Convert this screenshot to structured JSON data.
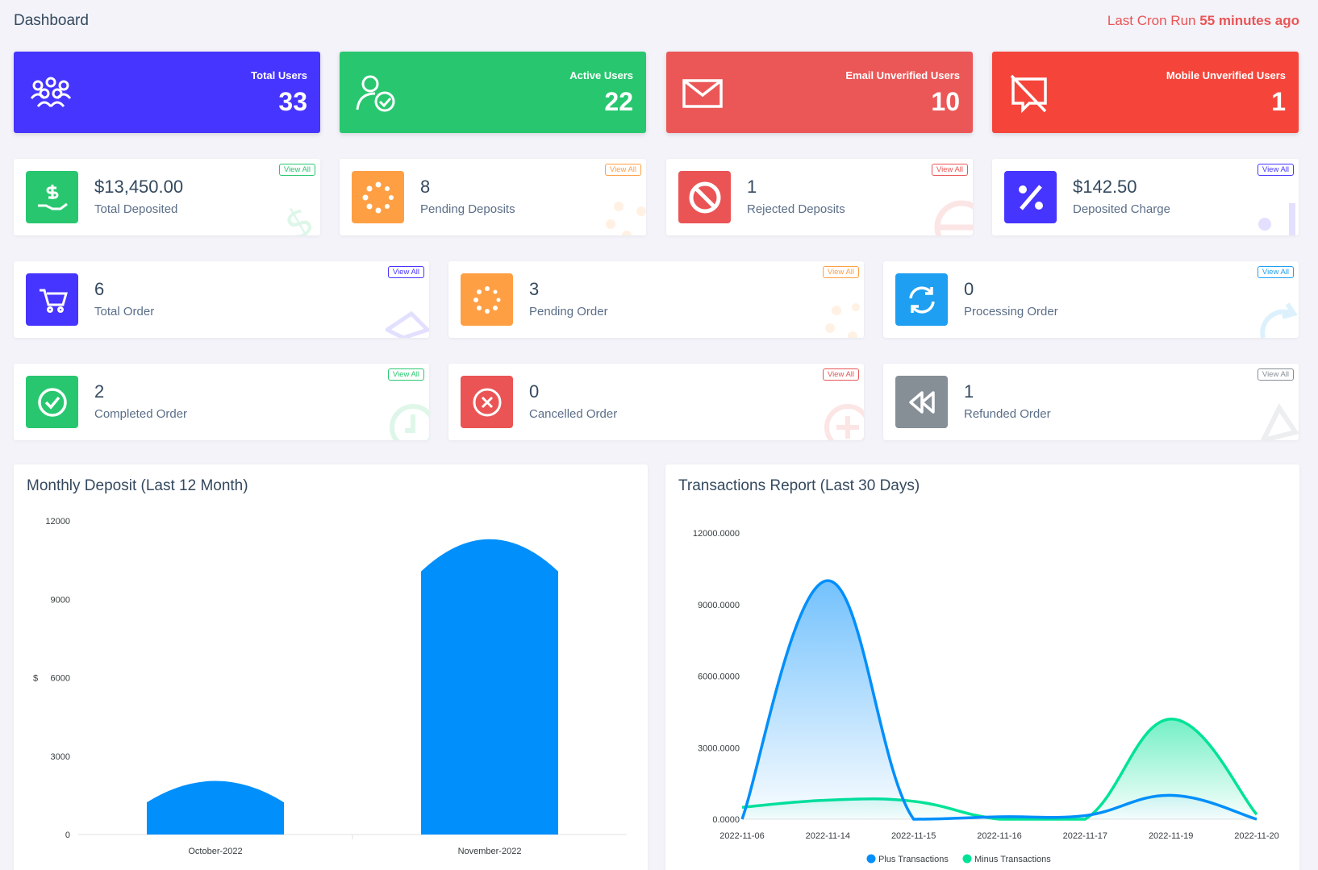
{
  "header": {
    "title": "Dashboard",
    "cron_label": "Last Cron Run",
    "cron_value": "55 minutes ago"
  },
  "stats": [
    {
      "label": "Total Users",
      "value": "33",
      "color": "#4634ff",
      "icon": "users-icon"
    },
    {
      "label": "Active Users",
      "value": "22",
      "color": "#28c76f",
      "icon": "user-check-icon"
    },
    {
      "label": "Email Unverified Users",
      "value": "10",
      "color": "#eb5757",
      "icon": "envelope-icon"
    },
    {
      "label": "Mobile Unverified Users",
      "value": "1",
      "color": "#f5453a",
      "icon": "comment-slash-icon"
    }
  ],
  "deposits": [
    {
      "value": "$13,450.00",
      "label": "Total Deposited",
      "link": "View All",
      "color": "#28c76f",
      "icon": "hand-dollar-icon"
    },
    {
      "value": "8",
      "label": "Pending Deposits",
      "link": "View All",
      "color": "#ff9f43",
      "icon": "spinner-icon"
    },
    {
      "value": "1",
      "label": "Rejected Deposits",
      "link": "View All",
      "color": "#ea5455",
      "icon": "ban-icon"
    },
    {
      "value": "$142.50",
      "label": "Deposited Charge",
      "link": "View All",
      "color": "#4634ff",
      "icon": "percent-icon"
    }
  ],
  "orders_row1": [
    {
      "value": "6",
      "label": "Total Order",
      "link": "View All",
      "color": "#4634ff",
      "icon": "cart-icon"
    },
    {
      "value": "3",
      "label": "Pending Order",
      "link": "View All",
      "color": "#ff9f43",
      "icon": "spinner-icon"
    },
    {
      "value": "0",
      "label": "Processing Order",
      "link": "View All",
      "color": "#1e9ff2",
      "icon": "sync-icon"
    }
  ],
  "orders_row2": [
    {
      "value": "2",
      "label": "Completed Order",
      "link": "View All",
      "color": "#28c76f",
      "icon": "check-circle-icon"
    },
    {
      "value": "0",
      "label": "Cancelled Order",
      "link": "View All",
      "color": "#ea5455",
      "icon": "times-circle-icon"
    },
    {
      "value": "1",
      "label": "Refunded Order",
      "link": "View All",
      "color": "#868e96",
      "icon": "backward-icon"
    }
  ],
  "monthly_chart": {
    "title": "Monthly Deposit (Last 12 Month)",
    "chart_data": {
      "type": "bar",
      "categories": [
        "October-2022",
        "November-2022"
      ],
      "values": [
        2050,
        11300
      ],
      "ylabel": "$",
      "ylim": [
        0,
        12000
      ],
      "yticks": [
        "0",
        "3000",
        "6000",
        "9000",
        "12000"
      ],
      "color": "#008ffb"
    }
  },
  "transactions_chart": {
    "title": "Transactions Report (Last 30 Days)",
    "chart_data": {
      "type": "area",
      "categories": [
        "2022-11-06",
        "2022-11-14",
        "2022-11-15",
        "2022-11-16",
        "2022-11-17",
        "2022-11-19",
        "2022-11-20"
      ],
      "series": [
        {
          "name": "Plus Transactions",
          "color": "#008ffb",
          "values": [
            0,
            10000,
            0,
            100,
            150,
            1000,
            0
          ]
        },
        {
          "name": "Minus Transactions",
          "color": "#00e396",
          "values": [
            500,
            800,
            750,
            0,
            0,
            4200,
            200
          ]
        }
      ],
      "ylim": [
        0,
        12000
      ],
      "yticks": [
        "0.0000",
        "3000.0000",
        "6000.0000",
        "9000.0000",
        "12000.0000"
      ]
    }
  }
}
